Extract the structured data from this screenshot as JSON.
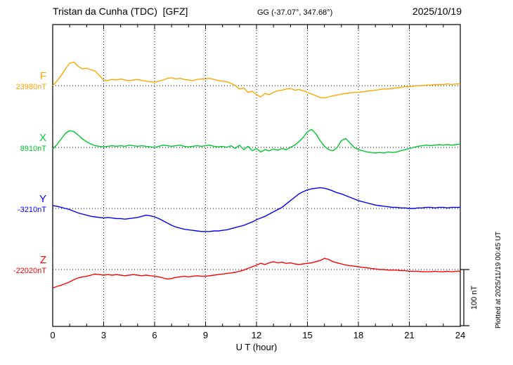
{
  "header": {
    "station_title": "Tristan da Cunha (TDC)  [GFZ]",
    "coords": "GG (-37.07°, 347.68°)",
    "date": "2025/10/19"
  },
  "plot": {
    "xlabel": "U T (hour)",
    "scalebar_label": "100 nT",
    "plotted_note": "Plotted at 2025/11/19 00:45 UT"
  },
  "chart_data": {
    "type": "line",
    "title": "Tristan da Cunha (TDC) magnetogram",
    "xlabel": "U T (hour)",
    "xlim": [
      0,
      24
    ],
    "xticks": [
      0,
      3,
      6,
      9,
      12,
      15,
      18,
      21,
      24
    ],
    "grid_hours": [
      3,
      6,
      9,
      12,
      15,
      18,
      21
    ],
    "scale_bar_nT": 100,
    "x_start": 0,
    "x_step_hours": 0.25,
    "value_unit": "nT (deviation from baseline)",
    "series": [
      {
        "name": "F",
        "baseline_value_label": "23980nT",
        "color": "#FFA500",
        "values": [
          0,
          8,
          18,
          30,
          40,
          42,
          34,
          30,
          31,
          28,
          26,
          18,
          10,
          9,
          11,
          10,
          12,
          10,
          9,
          10,
          11,
          9,
          8,
          7,
          6,
          8,
          10,
          13,
          14,
          12,
          13,
          11,
          10,
          9,
          11,
          12,
          12,
          13,
          11,
          9,
          8,
          7,
          4,
          0,
          -6,
          -4,
          -12,
          -10,
          -16,
          -20,
          -14,
          -16,
          -12,
          -9,
          -8,
          -6,
          -5,
          -8,
          -7,
          -9,
          -12,
          -15,
          -18,
          -21,
          -22,
          -20,
          -18,
          -17,
          -15,
          -14,
          -13,
          -12,
          -12,
          -11,
          -10,
          -9,
          -8,
          -7,
          -6,
          -6,
          -5,
          -4,
          -3,
          -2,
          -2,
          -1,
          0,
          0,
          1,
          1,
          2,
          2,
          2,
          3,
          2,
          3,
          3
        ]
      },
      {
        "name": "X",
        "baseline_value_label": "8910nT",
        "color": "#00C830",
        "values": [
          -3,
          5,
          15,
          25,
          30,
          28,
          22,
          15,
          10,
          6,
          3,
          2,
          1,
          2,
          3,
          2,
          3,
          2,
          4,
          3,
          2,
          3,
          2,
          1,
          0,
          2,
          4,
          3,
          2,
          3,
          4,
          2,
          1,
          2,
          3,
          2,
          3,
          4,
          2,
          1,
          2,
          0,
          3,
          -2,
          4,
          -4,
          2,
          -6,
          -2,
          -8,
          -4,
          -6,
          -3,
          -5,
          -2,
          -4,
          0,
          4,
          10,
          18,
          28,
          32,
          24,
          12,
          2,
          -4,
          -6,
          0,
          12,
          16,
          8,
          0,
          -4,
          -6,
          -8,
          -9,
          -10,
          -9,
          -10,
          -8,
          -9,
          -8,
          -6,
          -4,
          -2,
          0,
          2,
          3,
          4,
          3,
          4,
          5,
          4,
          5,
          4,
          5,
          6
        ]
      },
      {
        "name": "Y",
        "baseline_value_label": "-3210nT",
        "color": "#0000FF",
        "values": [
          5,
          4,
          2,
          0,
          -2,
          -5,
          -8,
          -10,
          -12,
          -14,
          -15,
          -16,
          -17,
          -16,
          -17,
          -18,
          -18,
          -19,
          -18,
          -17,
          -16,
          -14,
          -12,
          -13,
          -15,
          -18,
          -22,
          -26,
          -30,
          -33,
          -35,
          -37,
          -38,
          -39,
          -40,
          -41,
          -41,
          -41,
          -40,
          -40,
          -39,
          -38,
          -36,
          -34,
          -32,
          -30,
          -27,
          -24,
          -20,
          -17,
          -14,
          -10,
          -6,
          -2,
          2,
          8,
          14,
          20,
          26,
          30,
          33,
          35,
          36,
          37,
          36,
          34,
          31,
          28,
          26,
          23,
          20,
          17,
          14,
          12,
          10,
          8,
          6,
          5,
          4,
          3,
          2,
          2,
          1,
          1,
          0,
          0,
          1,
          1,
          2,
          2,
          1,
          2,
          2,
          1,
          2,
          2,
          2
        ]
      },
      {
        "name": "Z",
        "baseline_value_label": "-22020nT",
        "color": "#FF0000",
        "values": [
          -33,
          -30,
          -28,
          -25,
          -22,
          -18,
          -15,
          -13,
          -12,
          -10,
          -8,
          -9,
          -10,
          -9,
          -10,
          -9,
          -10,
          -11,
          -10,
          -9,
          -10,
          -11,
          -10,
          -11,
          -12,
          -13,
          -15,
          -17,
          -16,
          -14,
          -13,
          -12,
          -13,
          -12,
          -11,
          -12,
          -12,
          -11,
          -10,
          -9,
          -8,
          -7,
          -6,
          -5,
          -3,
          -1,
          2,
          5,
          8,
          11,
          9,
          12,
          14,
          12,
          13,
          11,
          12,
          10,
          9,
          10,
          11,
          12,
          14,
          16,
          20,
          18,
          14,
          12,
          10,
          8,
          7,
          6,
          5,
          4,
          3,
          2,
          1,
          0,
          0,
          -1,
          -1,
          -1,
          -2,
          -2,
          -3,
          -3,
          -3,
          -4,
          -4,
          -4,
          -3,
          -4,
          -4,
          -3,
          -4,
          -3,
          -3
        ]
      }
    ]
  }
}
